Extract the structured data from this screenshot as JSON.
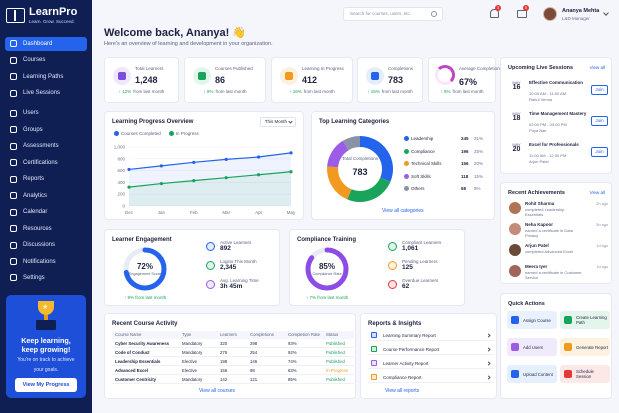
{
  "brand": {
    "name": "LearnPro",
    "tagline": "Learn. Grow. Succeed."
  },
  "sidebar": {
    "items": [
      {
        "label": "Dashboard",
        "icon": "home-icon",
        "active": true
      },
      {
        "label": "Courses",
        "icon": "book-icon"
      },
      {
        "label": "Learning Paths",
        "icon": "path-icon"
      },
      {
        "label": "Live Sessions",
        "icon": "video-icon"
      },
      {
        "label": "Users",
        "icon": "user-icon"
      },
      {
        "label": "Groups",
        "icon": "group-icon"
      },
      {
        "label": "Assessments",
        "icon": "clipboard-icon"
      },
      {
        "label": "Certifications",
        "icon": "certificate-icon"
      },
      {
        "label": "Reports",
        "icon": "report-icon"
      },
      {
        "label": "Analytics",
        "icon": "analytics-icon"
      },
      {
        "label": "Calendar",
        "icon": "calendar-icon"
      },
      {
        "label": "Resources",
        "icon": "folder-icon"
      },
      {
        "label": "Discussions",
        "icon": "chat-icon"
      },
      {
        "label": "Notifications",
        "icon": "bell-icon"
      },
      {
        "label": "Settings",
        "icon": "gear-icon"
      }
    ],
    "promo": {
      "title1": "Keep learning,",
      "title2": "keep growing!",
      "text1": "You're on track to achieve",
      "text2": "your goals.",
      "button": "View My Progress"
    }
  },
  "header": {
    "title": "Welcome back, Ananya! 👋",
    "subtitle": "Here's an overview of learning and development in your organization.",
    "search_placeholder": "Search for courses, users, etc.",
    "notif_count": "3",
    "mail_count": "5",
    "user": {
      "name": "Ananya Mehta",
      "role": "L&D Manager"
    }
  },
  "stats": [
    {
      "label": "Total Learners",
      "value": "1,248",
      "delta": "12%",
      "delta_text": "from last month",
      "color": "#7c4ddc",
      "bg": "#efe8fc"
    },
    {
      "label": "Courses Published",
      "value": "86",
      "delta": "8%",
      "delta_text": "from last month",
      "color": "#1aa35b",
      "bg": "#e3f6ec"
    },
    {
      "label": "Learning In Progress",
      "value": "412",
      "delta": "16%",
      "delta_text": "from last month",
      "color": "#f29a1f",
      "bg": "#fdf0dc"
    },
    {
      "label": "Completions",
      "value": "783",
      "delta": "15%",
      "delta_text": "from last month",
      "color": "#2463eb",
      "bg": "#e5edfd"
    },
    {
      "label": "Average Completion Rate",
      "value": "67%",
      "delta": "5%",
      "delta_text": "from last month",
      "color": "#c044c4",
      "bg": "#f9e6f9"
    }
  ],
  "progress_chart": {
    "title": "Learning Progress Overview",
    "period": "This Month",
    "chart_data": {
      "type": "line",
      "categories": [
        "Dec",
        "Jan",
        "Feb",
        "Mar",
        "Apr",
        "May"
      ],
      "series": [
        {
          "name": "Courses Completed",
          "color": "#2463eb",
          "values": [
            620,
            680,
            740,
            790,
            830,
            900
          ]
        },
        {
          "name": "In Progress",
          "color": "#1aa35b",
          "values": [
            320,
            380,
            430,
            480,
            530,
            580
          ]
        }
      ],
      "ylim": [
        0,
        1000
      ],
      "yticks": [
        "1,000",
        "800",
        "600",
        "400",
        "200",
        "0"
      ]
    }
  },
  "categories_chart": {
    "title": "Top Learning Categories",
    "center_label": "Total Completions",
    "center_value": "783",
    "link": "View all categories",
    "chart_data": {
      "type": "pie",
      "items": [
        {
          "name": "Leadership",
          "value": 245,
          "pct": "31%",
          "color": "#2463eb"
        },
        {
          "name": "Compliance",
          "value": 196,
          "pct": "25%",
          "color": "#1aa35b"
        },
        {
          "name": "Technical Skills",
          "value": 156,
          "pct": "20%",
          "color": "#f29a1f"
        },
        {
          "name": "Soft Skills",
          "value": 118,
          "pct": "15%",
          "color": "#9b5de5"
        },
        {
          "name": "Others",
          "value": 68,
          "pct": "9%",
          "color": "#8a91a8"
        }
      ]
    }
  },
  "engagement": {
    "title": "Learner Engagement",
    "score": "72%",
    "score_label": "Engagement Score",
    "score_value": 72,
    "delta": "9% from last month",
    "kpis": [
      {
        "label": "Active Learners",
        "value": "892",
        "color": "#2463eb"
      },
      {
        "label": "Logins This Month",
        "value": "2,345",
        "color": "#1aa35b"
      },
      {
        "label": "Avg. Learning Time",
        "value": "3h 45m",
        "color": "#9b5de5"
      }
    ]
  },
  "compliance": {
    "title": "Compliance Training",
    "score": "85%",
    "score_label": "Compliance Rate",
    "score_value": 85,
    "delta": "7% from last month",
    "kpis": [
      {
        "label": "Compliant Learners",
        "value": "1,061",
        "color": "#1aa35b"
      },
      {
        "label": "Pending Learners",
        "value": "125",
        "color": "#f29a1f"
      },
      {
        "label": "Overdue Learners",
        "value": "62",
        "color": "#e53935"
      }
    ]
  },
  "activity": {
    "title": "Recent Course Activity",
    "columns": [
      "Course Name",
      "Type",
      "Learners",
      "Completions",
      "Completion Rate",
      "Status"
    ],
    "rows": [
      [
        "Cyber Security Awareness",
        "Mandatory",
        "320",
        "298",
        "93%",
        "Published"
      ],
      [
        "Code of Conduct",
        "Mandatory",
        "276",
        "254",
        "92%",
        "Published"
      ],
      [
        "Leadership Essentials",
        "Elective",
        "198",
        "146",
        "74%",
        "Published"
      ],
      [
        "Advanced Excel",
        "Elective",
        "156",
        "98",
        "63%",
        "In Progress"
      ],
      [
        "Customer Centricity",
        "Mandatory",
        "142",
        "121",
        "85%",
        "Published"
      ]
    ],
    "link": "View all courses"
  },
  "reports": {
    "title": "Reports & Insights",
    "items": [
      {
        "label": "Learning Summary Report",
        "color": "#2463eb"
      },
      {
        "label": "Course Performance Report",
        "color": "#1aa35b"
      },
      {
        "label": "Learner Activity Report",
        "color": "#9b5de5"
      },
      {
        "label": "Compliance Report",
        "color": "#f29a1f"
      }
    ],
    "link": "View all reports"
  },
  "sessions": {
    "title": "Upcoming Live Sessions",
    "link": "View all",
    "items": [
      {
        "month": "MAY",
        "day": "16",
        "title": "Effective Communication",
        "time": "10:00 AM - 11:00 AM",
        "host": "Rahul Verma",
        "button": "Join"
      },
      {
        "month": "MAY",
        "day": "18",
        "title": "Time Management Mastery",
        "time": "02:00 PM - 03:00 PM",
        "host": "Priya Nair",
        "button": "Join"
      },
      {
        "month": "MAY",
        "day": "20",
        "title": "Excel for Professionals",
        "time": "11:00 AM - 12:30 PM",
        "host": "Arjun Patel",
        "button": "Join"
      }
    ]
  },
  "achievements": {
    "title": "Recent Achievements",
    "link": "View all",
    "items": [
      {
        "name": "Rohit Sharma",
        "text": "completed Leadership Essentials",
        "time": "2h ago",
        "color": "#b07454"
      },
      {
        "name": "Neha Kapoor",
        "text": "earned a certificate in Data Privacy",
        "time": "5h ago",
        "color": "#c48b7a"
      },
      {
        "name": "Arjun Patel",
        "text": "completed Advanced Excel",
        "time": "1d ago",
        "color": "#6b4a3a"
      },
      {
        "name": "Meera Iyer",
        "text": "earned a certificate in Customer Service",
        "time": "1d ago",
        "color": "#a0655c"
      }
    ]
  },
  "quick_actions": {
    "title": "Quick Actions",
    "items": [
      {
        "label": "Assign Course",
        "color": "#2463eb",
        "bg": "#e9f0fe"
      },
      {
        "label": "Create Learning Path",
        "color": "#1aa35b",
        "bg": "#e4f6ec"
      },
      {
        "label": "Add Users",
        "color": "#9b5de5",
        "bg": "#f1eafc"
      },
      {
        "label": "Generate Report",
        "color": "#f29a1f",
        "bg": "#fdf1e0"
      },
      {
        "label": "Upload Content",
        "color": "#2463eb",
        "bg": "#e6f0fd"
      },
      {
        "label": "Schedule Session",
        "color": "#e53935",
        "bg": "#fde8e8"
      }
    ]
  }
}
